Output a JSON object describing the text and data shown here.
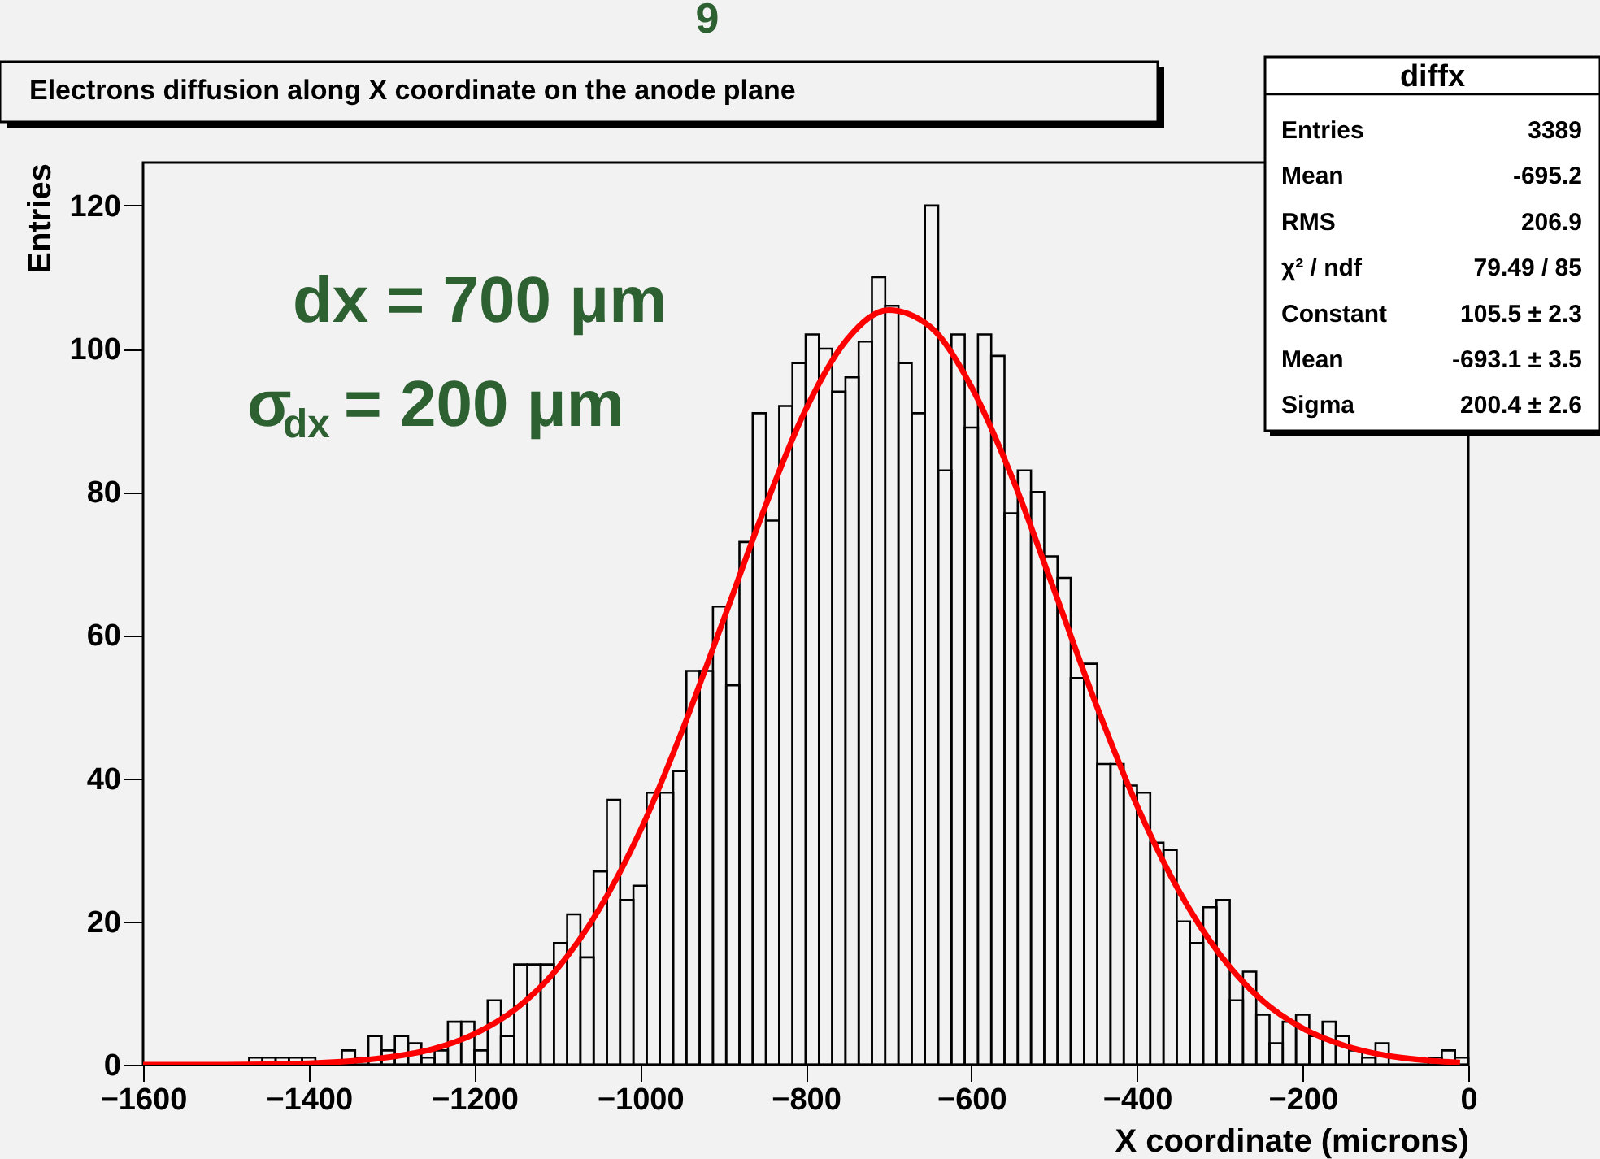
{
  "chart_data": {
    "type": "histogram",
    "title": "Electrons diffusion along X coordinate on the anode plane",
    "xlabel": "X coordinate (microns)",
    "ylabel": "Entries",
    "xlim": [
      -1600,
      0
    ],
    "ylim": [
      0,
      126
    ],
    "xticks": [
      -1600,
      -1400,
      -1200,
      -1000,
      -800,
      -600,
      -400,
      -200,
      0
    ],
    "yticks": [
      0,
      20,
      40,
      60,
      80,
      100,
      120
    ],
    "grid": false,
    "series": [
      {
        "color": "#000000",
        "bins": [
          -1600,
          -1584,
          -1568,
          -1552,
          -1536,
          -1520,
          -1504,
          -1488,
          -1472,
          -1456,
          -1440,
          -1424,
          -1408,
          -1392,
          -1376,
          -1360,
          -1344,
          -1328,
          -1312,
          -1296,
          -1280,
          -1264,
          -1248,
          -1232,
          -1216,
          -1200,
          -1184,
          -1168,
          -1152,
          -1136,
          -1120,
          -1104,
          -1088,
          -1072,
          -1056,
          -1040,
          -1024,
          -1008,
          -992,
          -976,
          -960,
          -944,
          -928,
          -912,
          -896,
          -880,
          -864,
          -848,
          -832,
          -816,
          -800,
          -784,
          -768,
          -752,
          -736,
          -720,
          -704,
          -688,
          -672,
          -656,
          -640,
          -624,
          -608,
          -592,
          -576,
          -560,
          -544,
          -528,
          -512,
          -496,
          -480,
          -464,
          -448,
          -432,
          -416,
          -400,
          -384,
          -368,
          -352,
          -336,
          -320,
          -304,
          -288,
          -272,
          -256,
          -240,
          -224,
          -208,
          -192,
          -176,
          -160,
          -144,
          -128,
          -112,
          -96,
          -80,
          -64,
          -48,
          -32,
          -16,
          0
        ],
        "values": [
          0,
          0,
          0,
          0,
          0,
          0,
          0,
          0,
          1,
          1,
          1,
          1,
          1,
          0,
          0,
          2,
          1,
          4,
          2,
          4,
          3,
          1,
          2,
          6,
          6,
          2,
          9,
          4,
          14,
          14,
          14,
          17,
          21,
          15,
          27,
          37,
          23,
          25,
          38,
          38,
          41,
          55,
          55,
          64,
          53,
          73,
          91,
          76,
          92,
          98,
          102,
          100,
          94,
          96,
          101,
          110,
          106,
          98,
          91,
          120,
          83,
          102,
          89,
          102,
          99,
          77,
          83,
          80,
          71,
          68,
          54,
          56,
          42,
          42,
          39,
          38,
          31,
          30,
          20,
          17,
          22,
          23,
          9,
          13,
          7,
          3,
          6,
          7,
          4,
          6,
          4,
          2,
          1,
          3,
          0,
          0,
          0,
          1,
          2,
          1
        ]
      },
      {
        "type": "line",
        "line_style": "solid",
        "color": "#ff0000",
        "x": [
          -1600,
          -1500,
          -1400,
          -1300,
          -1250,
          -1200,
          -1150,
          -1100,
          -1050,
          -1000,
          -950,
          -900,
          -850,
          -800,
          -750,
          -700,
          -650,
          -600,
          -550,
          -500,
          -450,
          -400,
          -350,
          -300,
          -250,
          -200,
          -150,
          -100,
          -50,
          -10
        ],
        "values": [
          0,
          0,
          0.2,
          1.1,
          2.2,
          4.3,
          7.8,
          13.4,
          21.6,
          32.6,
          46.4,
          61.9,
          77.6,
          91.5,
          101.3,
          105.4,
          103.1,
          94.7,
          81.8,
          66.3,
          50.5,
          36.2,
          24.4,
          15.4,
          9.1,
          5.1,
          2.7,
          1.3,
          0.6,
          0.3
        ]
      }
    ],
    "annotations": [
      "9",
      "dx = 700 μm",
      "σ$_{dx}$ = 200 μm",
      "diffx",
      "Entries",
      "3389",
      "Mean",
      "-695.2",
      "RMS",
      "206.9",
      "χ² / ndf",
      "79.49 / 85",
      "Constant",
      "105.5 ± 2.3",
      "Mean",
      "-693.1 ± 3.5",
      "Sigma",
      "200.4 ± 2.6"
    ]
  }
}
